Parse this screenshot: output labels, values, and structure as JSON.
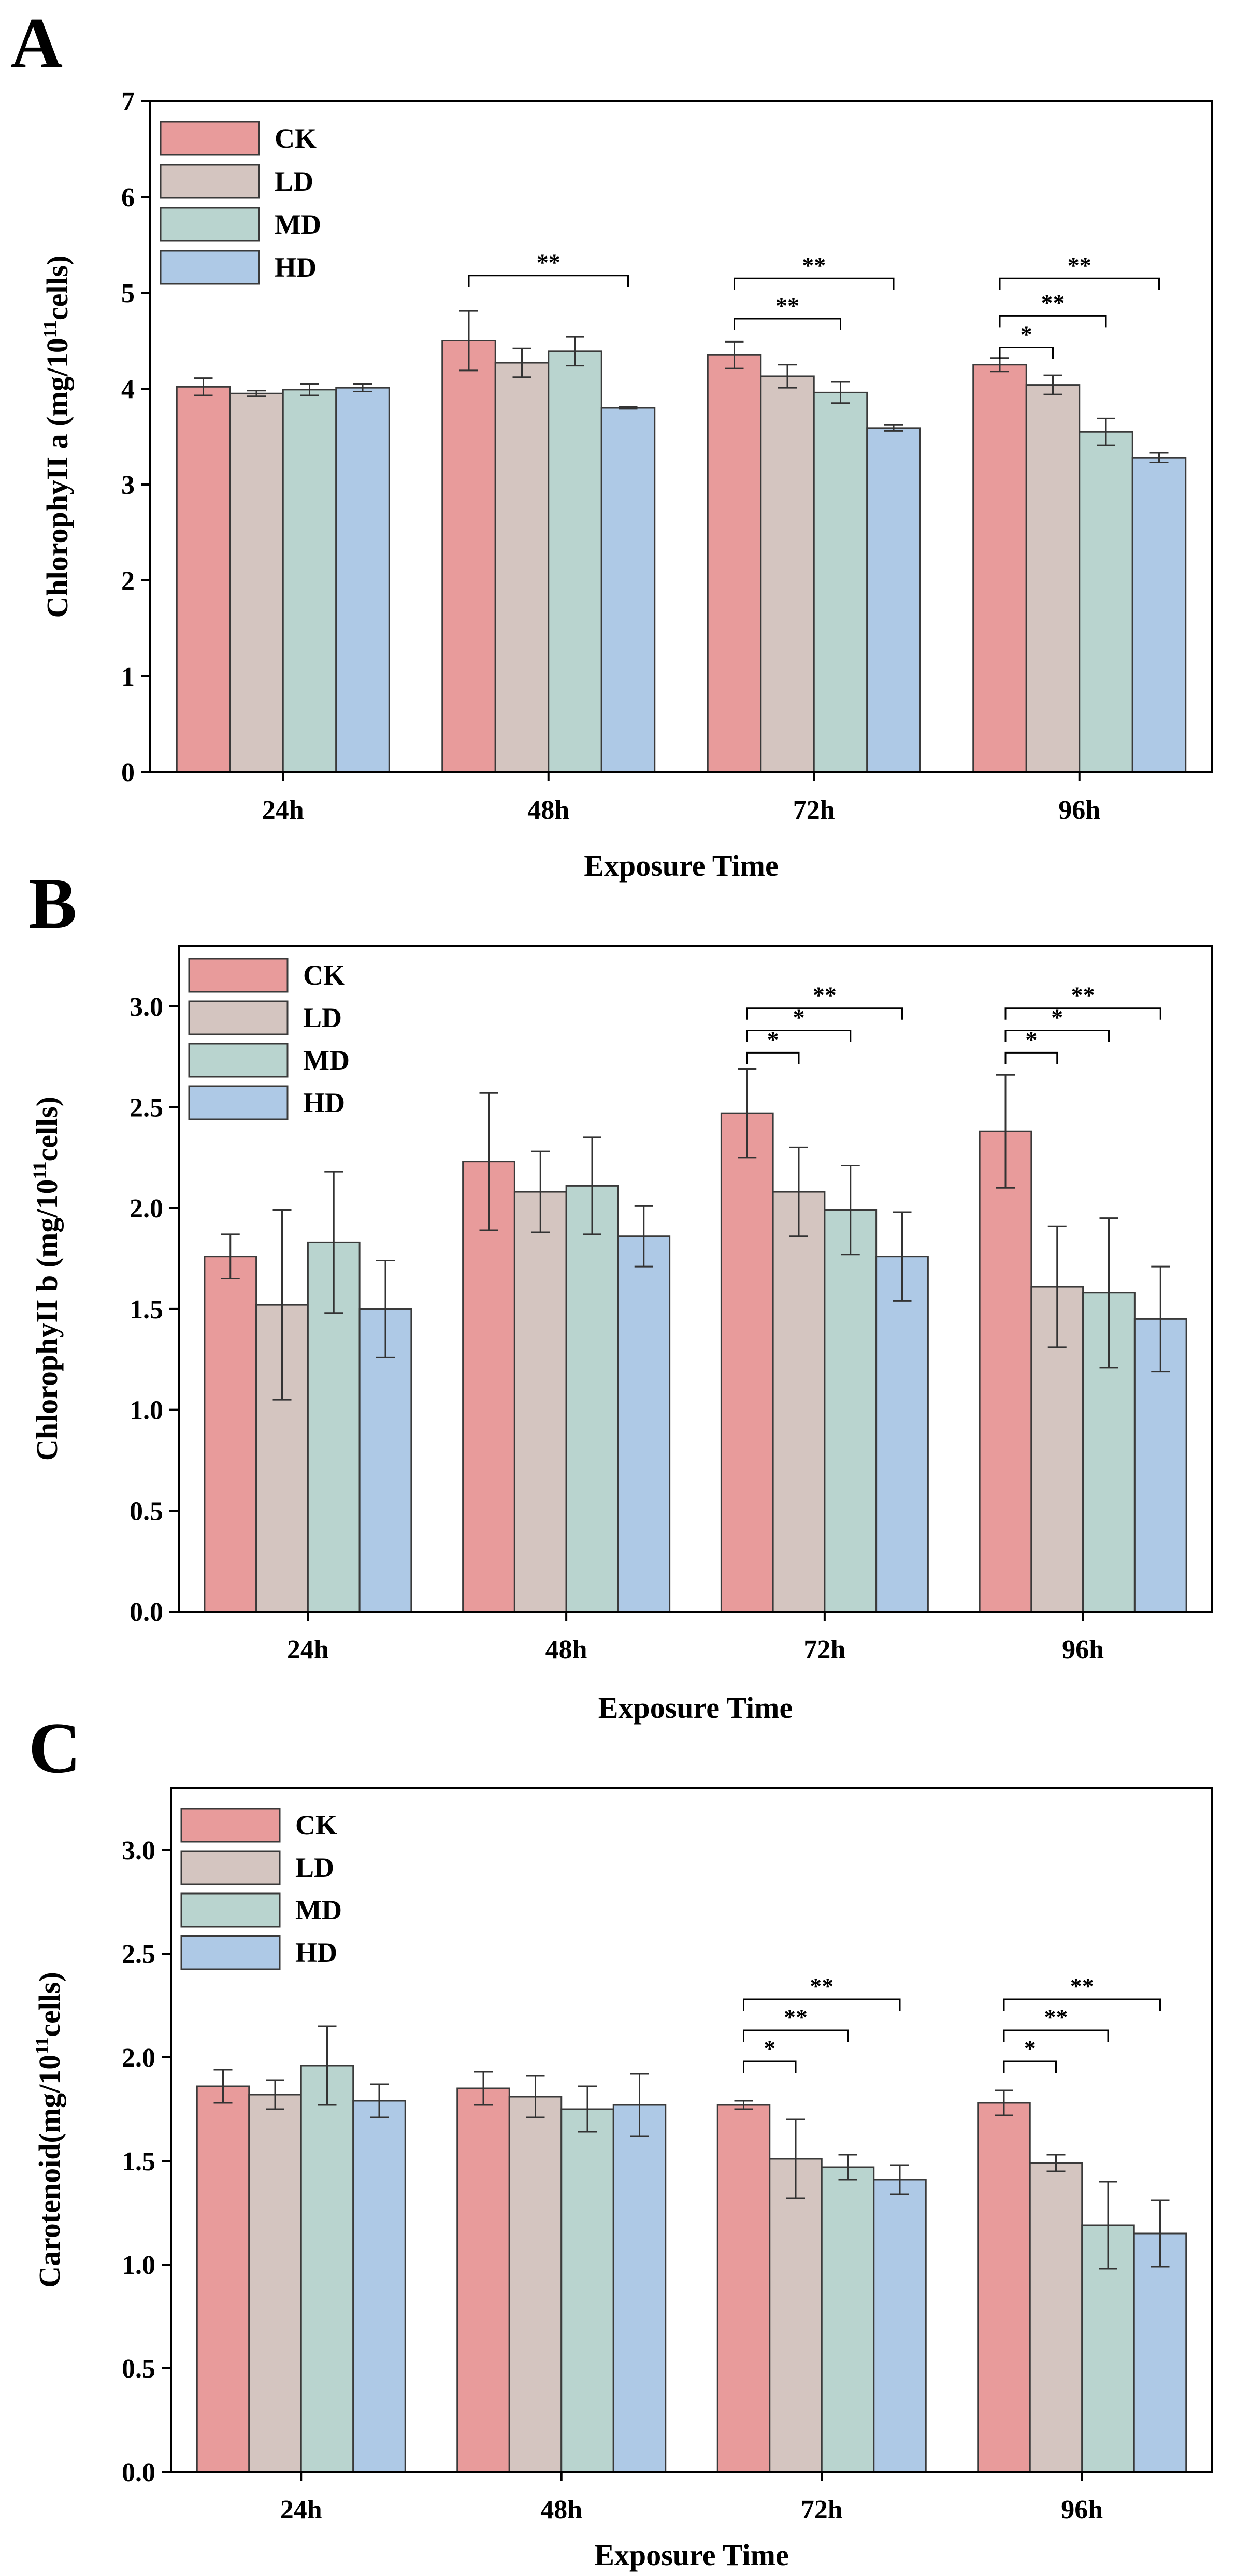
{
  "series_colors": {
    "CK": "#e89b9b",
    "LD": "#d4c5c0",
    "MD": "#b9d4cf",
    "HD": "#aec9e6"
  },
  "chart_data": [
    {
      "panel": "A",
      "type": "bar",
      "xlabel": "Exposure Time",
      "ylabel_main": "ChlorophyII a (mg/10",
      "ylabel_sup": "11",
      "ylabel_tail": "cells)",
      "categories": [
        "24h",
        "48h",
        "72h",
        "96h"
      ],
      "ylim": [
        0,
        7
      ],
      "yticks": [
        0,
        1,
        2,
        3,
        4,
        5,
        6,
        7
      ],
      "tick_decimals": 0,
      "legend_position": "top-left",
      "series": [
        {
          "name": "CK",
          "values": [
            4.02,
            4.5,
            4.35,
            4.25
          ],
          "errors": [
            0.09,
            0.31,
            0.14,
            0.07
          ]
        },
        {
          "name": "LD",
          "values": [
            3.95,
            4.27,
            4.13,
            4.04
          ],
          "errors": [
            0.03,
            0.15,
            0.12,
            0.1
          ]
        },
        {
          "name": "MD",
          "values": [
            3.99,
            4.39,
            3.96,
            3.55
          ],
          "errors": [
            0.06,
            0.15,
            0.11,
            0.14
          ]
        },
        {
          "name": "HD",
          "values": [
            4.01,
            3.8,
            3.59,
            3.28
          ],
          "errors": [
            0.04,
            0.01,
            0.03,
            0.05
          ]
        }
      ],
      "significance": [
        {
          "category": 1,
          "from": "CK",
          "to": "HD",
          "label": "**",
          "y": 5.18
        },
        {
          "category": 2,
          "from": "CK",
          "to": "MD",
          "label": "**",
          "y": 4.73
        },
        {
          "category": 2,
          "from": "CK",
          "to": "HD",
          "label": "**",
          "y": 5.15
        },
        {
          "category": 3,
          "from": "CK",
          "to": "LD",
          "label": "*",
          "y": 4.43
        },
        {
          "category": 3,
          "from": "CK",
          "to": "MD",
          "label": "**",
          "y": 4.76
        },
        {
          "category": 3,
          "from": "CK",
          "to": "HD",
          "label": "**",
          "y": 5.15
        }
      ]
    },
    {
      "panel": "B",
      "type": "bar",
      "xlabel": "Exposure Time",
      "ylabel_main": "ChlorophyII b (mg/10",
      "ylabel_sup": "11",
      "ylabel_tail": "cells)",
      "categories": [
        "24h",
        "48h",
        "72h",
        "96h"
      ],
      "ylim": [
        0,
        3.3
      ],
      "yticks": [
        0.0,
        0.5,
        1.0,
        1.5,
        2.0,
        2.5,
        3.0
      ],
      "tick_decimals": 1,
      "legend_position": "top-left",
      "series": [
        {
          "name": "CK",
          "values": [
            1.76,
            2.23,
            2.47,
            2.38
          ],
          "errors": [
            0.11,
            0.34,
            0.22,
            0.28
          ]
        },
        {
          "name": "LD",
          "values": [
            1.52,
            2.08,
            2.08,
            1.61
          ],
          "errors": [
            0.47,
            0.2,
            0.22,
            0.3
          ]
        },
        {
          "name": "MD",
          "values": [
            1.83,
            2.11,
            1.99,
            1.58
          ],
          "errors": [
            0.35,
            0.24,
            0.22,
            0.37
          ]
        },
        {
          "name": "HD",
          "values": [
            1.5,
            1.86,
            1.76,
            1.45
          ],
          "errors": [
            0.24,
            0.15,
            0.22,
            0.26
          ]
        }
      ],
      "significance": [
        {
          "category": 2,
          "from": "CK",
          "to": "LD",
          "label": "*",
          "y": 2.77
        },
        {
          "category": 2,
          "from": "CK",
          "to": "MD",
          "label": "*",
          "y": 2.88
        },
        {
          "category": 2,
          "from": "CK",
          "to": "HD",
          "label": "**",
          "y": 2.99
        },
        {
          "category": 3,
          "from": "CK",
          "to": "LD",
          "label": "*",
          "y": 2.77
        },
        {
          "category": 3,
          "from": "CK",
          "to": "MD",
          "label": "*",
          "y": 2.88
        },
        {
          "category": 3,
          "from": "CK",
          "to": "HD",
          "label": "**",
          "y": 2.99
        }
      ]
    },
    {
      "panel": "C",
      "type": "bar",
      "xlabel": "Exposure Time",
      "ylabel_main": "Carotenoid(mg/10",
      "ylabel_sup": "11",
      "ylabel_tail": "cells)",
      "categories": [
        "24h",
        "48h",
        "72h",
        "96h"
      ],
      "ylim": [
        0,
        3.3
      ],
      "yticks": [
        0.0,
        0.5,
        1.0,
        1.5,
        2.0,
        2.5,
        3.0
      ],
      "tick_decimals": 1,
      "legend_position": "top-left",
      "series": [
        {
          "name": "CK",
          "values": [
            1.86,
            1.85,
            1.77,
            1.78
          ],
          "errors": [
            0.08,
            0.08,
            0.02,
            0.06
          ]
        },
        {
          "name": "LD",
          "values": [
            1.82,
            1.81,
            1.51,
            1.49
          ],
          "errors": [
            0.07,
            0.1,
            0.19,
            0.04
          ]
        },
        {
          "name": "MD",
          "values": [
            1.96,
            1.75,
            1.47,
            1.19
          ],
          "errors": [
            0.19,
            0.11,
            0.06,
            0.21
          ]
        },
        {
          "name": "HD",
          "values": [
            1.79,
            1.77,
            1.41,
            1.15
          ],
          "errors": [
            0.08,
            0.15,
            0.07,
            0.16
          ]
        }
      ],
      "significance": [
        {
          "category": 2,
          "from": "CK",
          "to": "LD",
          "label": "*",
          "y": 1.98
        },
        {
          "category": 2,
          "from": "CK",
          "to": "MD",
          "label": "**",
          "y": 2.13
        },
        {
          "category": 2,
          "from": "CK",
          "to": "HD",
          "label": "**",
          "y": 2.28
        },
        {
          "category": 3,
          "from": "CK",
          "to": "LD",
          "label": "*",
          "y": 1.98
        },
        {
          "category": 3,
          "from": "CK",
          "to": "MD",
          "label": "**",
          "y": 2.13
        },
        {
          "category": 3,
          "from": "CK",
          "to": "HD",
          "label": "**",
          "y": 2.28
        }
      ]
    }
  ]
}
